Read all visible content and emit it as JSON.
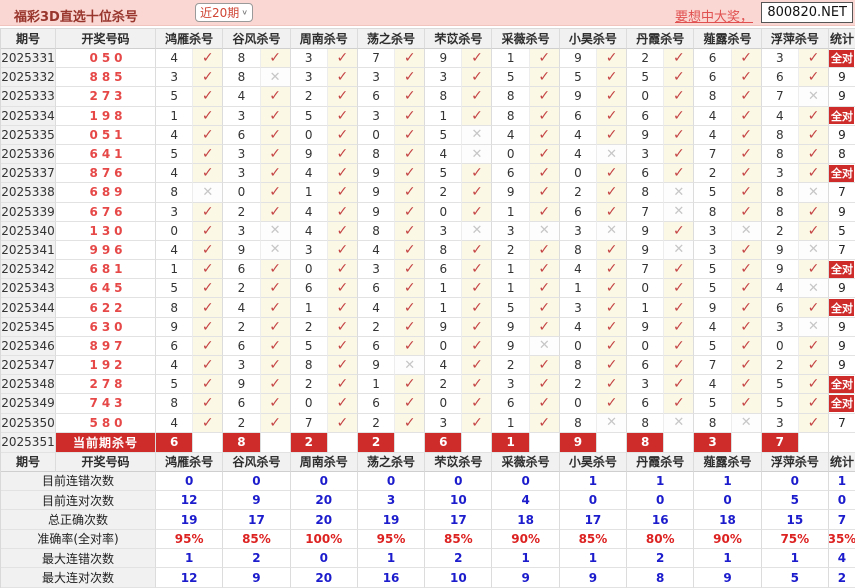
{
  "topbar": {
    "title": "福彩3D直选十位杀号",
    "range_selected": "近20期",
    "promo_link": "要想中大奖，",
    "site_badge": "800820.NET"
  },
  "icons": {
    "check_glyph": "✓",
    "cross_glyph": "✕",
    "dropdown_arrow": "∨"
  },
  "colors": {
    "topbar_pink": "#fad7d2",
    "accent_red": "#ce2b2b",
    "result_red": "#e64848",
    "correct_bg": "#fbf8e6",
    "check_red": "#c54545",
    "cross_gray": "#c6c6c6",
    "value_blue": "#1c1ccd",
    "percent_red": "#dd2222"
  },
  "table": {
    "headers": [
      "期号",
      "开奖号码",
      "鸿雁杀号",
      "谷风杀号",
      "周南杀号",
      "荡之杀号",
      "芣苡杀号",
      "采薇杀号",
      "小昊杀号",
      "丹霞杀号",
      "薤露杀号",
      "浮萍杀号",
      "统计"
    ],
    "full_hit_label": "全对",
    "rows": [
      {
        "period": "2025331",
        "result": "050",
        "kills": [
          4,
          8,
          3,
          7,
          9,
          1,
          9,
          2,
          6,
          3
        ],
        "marks": [
          1,
          1,
          1,
          1,
          1,
          1,
          1,
          1,
          1,
          1
        ],
        "stat": "全对"
      },
      {
        "period": "2025332",
        "result": "885",
        "kills": [
          3,
          8,
          3,
          3,
          3,
          5,
          5,
          5,
          6,
          6
        ],
        "marks": [
          1,
          0,
          1,
          1,
          1,
          1,
          1,
          1,
          1,
          1
        ],
        "stat": "9"
      },
      {
        "period": "2025333",
        "result": "273",
        "kills": [
          5,
          4,
          2,
          6,
          8,
          8,
          9,
          0,
          8,
          7
        ],
        "marks": [
          1,
          1,
          1,
          1,
          1,
          1,
          1,
          1,
          1,
          0
        ],
        "stat": "9"
      },
      {
        "period": "2025334",
        "result": "198",
        "kills": [
          1,
          3,
          5,
          3,
          1,
          8,
          6,
          6,
          4,
          4
        ],
        "marks": [
          1,
          1,
          1,
          1,
          1,
          1,
          1,
          1,
          1,
          1
        ],
        "stat": "全对"
      },
      {
        "period": "2025335",
        "result": "051",
        "kills": [
          4,
          6,
          0,
          0,
          5,
          4,
          4,
          9,
          4,
          8
        ],
        "marks": [
          1,
          1,
          1,
          1,
          0,
          1,
          1,
          1,
          1,
          1
        ],
        "stat": "9"
      },
      {
        "period": "2025336",
        "result": "641",
        "kills": [
          5,
          3,
          9,
          8,
          4,
          0,
          4,
          3,
          7,
          8
        ],
        "marks": [
          1,
          1,
          1,
          1,
          0,
          1,
          0,
          1,
          1,
          1
        ],
        "stat": "8"
      },
      {
        "period": "2025337",
        "result": "876",
        "kills": [
          4,
          3,
          4,
          9,
          5,
          6,
          0,
          6,
          2,
          3
        ],
        "marks": [
          1,
          1,
          1,
          1,
          1,
          1,
          1,
          1,
          1,
          1
        ],
        "stat": "全对"
      },
      {
        "period": "2025338",
        "result": "689",
        "kills": [
          8,
          0,
          1,
          9,
          2,
          9,
          2,
          8,
          5,
          8
        ],
        "marks": [
          0,
          1,
          1,
          1,
          1,
          1,
          1,
          0,
          1,
          0
        ],
        "stat": "7"
      },
      {
        "period": "2025339",
        "result": "676",
        "kills": [
          3,
          2,
          4,
          9,
          0,
          1,
          6,
          7,
          8,
          8
        ],
        "marks": [
          1,
          1,
          1,
          1,
          1,
          1,
          1,
          0,
          1,
          1
        ],
        "stat": "9"
      },
      {
        "period": "2025340",
        "result": "130",
        "kills": [
          0,
          3,
          4,
          8,
          3,
          3,
          3,
          9,
          3,
          2
        ],
        "marks": [
          1,
          0,
          1,
          1,
          0,
          0,
          0,
          1,
          0,
          1
        ],
        "stat": "5"
      },
      {
        "period": "2025341",
        "result": "996",
        "kills": [
          4,
          9,
          3,
          4,
          8,
          2,
          8,
          9,
          3,
          9
        ],
        "marks": [
          1,
          0,
          1,
          1,
          1,
          1,
          1,
          0,
          1,
          0
        ],
        "stat": "7"
      },
      {
        "period": "2025342",
        "result": "681",
        "kills": [
          1,
          6,
          0,
          3,
          6,
          1,
          4,
          7,
          5,
          9
        ],
        "marks": [
          1,
          1,
          1,
          1,
          1,
          1,
          1,
          1,
          1,
          1
        ],
        "stat": "全对"
      },
      {
        "period": "2025343",
        "result": "645",
        "kills": [
          5,
          2,
          6,
          6,
          1,
          1,
          1,
          0,
          5,
          4
        ],
        "marks": [
          1,
          1,
          1,
          1,
          1,
          1,
          1,
          1,
          1,
          0
        ],
        "stat": "9"
      },
      {
        "period": "2025344",
        "result": "622",
        "kills": [
          8,
          4,
          1,
          4,
          1,
          5,
          3,
          1,
          9,
          6
        ],
        "marks": [
          1,
          1,
          1,
          1,
          1,
          1,
          1,
          1,
          1,
          1
        ],
        "stat": "全对"
      },
      {
        "period": "2025345",
        "result": "630",
        "kills": [
          9,
          2,
          2,
          2,
          9,
          9,
          4,
          9,
          4,
          3
        ],
        "marks": [
          1,
          1,
          1,
          1,
          1,
          1,
          1,
          1,
          1,
          0
        ],
        "stat": "9"
      },
      {
        "period": "2025346",
        "result": "897",
        "kills": [
          6,
          6,
          5,
          6,
          0,
          9,
          0,
          0,
          5,
          0
        ],
        "marks": [
          1,
          1,
          1,
          1,
          1,
          0,
          1,
          1,
          1,
          1
        ],
        "stat": "9"
      },
      {
        "period": "2025347",
        "result": "192",
        "kills": [
          4,
          3,
          8,
          9,
          4,
          2,
          8,
          6,
          7,
          2
        ],
        "marks": [
          1,
          1,
          1,
          0,
          1,
          1,
          1,
          1,
          1,
          1
        ],
        "stat": "9"
      },
      {
        "period": "2025348",
        "result": "278",
        "kills": [
          5,
          9,
          2,
          1,
          2,
          3,
          2,
          3,
          4,
          5
        ],
        "marks": [
          1,
          1,
          1,
          1,
          1,
          1,
          1,
          1,
          1,
          1
        ],
        "stat": "全对"
      },
      {
        "period": "2025349",
        "result": "743",
        "kills": [
          8,
          6,
          0,
          6,
          0,
          6,
          0,
          6,
          5,
          5
        ],
        "marks": [
          1,
          1,
          1,
          1,
          1,
          1,
          1,
          1,
          1,
          1
        ],
        "stat": "全对"
      },
      {
        "period": "2025350",
        "result": "580",
        "kills": [
          4,
          2,
          7,
          2,
          3,
          1,
          8,
          8,
          8,
          3
        ],
        "marks": [
          1,
          1,
          1,
          1,
          1,
          1,
          0,
          0,
          0,
          1
        ],
        "stat": "7"
      }
    ],
    "current_row": {
      "period": "2025351",
      "label": "当前期杀号",
      "kills": [
        6,
        8,
        2,
        2,
        6,
        1,
        9,
        8,
        3,
        7
      ]
    },
    "summary_rows": [
      {
        "label": "目前连错次数",
        "style": "blue",
        "values": [
          "0",
          "0",
          "0",
          "0",
          "0",
          "0",
          "1",
          "1",
          "1",
          "0",
          "1"
        ]
      },
      {
        "label": "目前连对次数",
        "style": "blue",
        "values": [
          "12",
          "9",
          "20",
          "3",
          "10",
          "4",
          "0",
          "0",
          "0",
          "5",
          "0"
        ]
      },
      {
        "label": "总正确次数",
        "style": "blue",
        "values": [
          "19",
          "17",
          "20",
          "19",
          "17",
          "18",
          "17",
          "16",
          "18",
          "15",
          "7"
        ]
      },
      {
        "label": "准确率(全对率)",
        "style": "red",
        "values": [
          "95%",
          "85%",
          "100%",
          "95%",
          "85%",
          "90%",
          "85%",
          "80%",
          "90%",
          "75%",
          "35%"
        ]
      },
      {
        "label": "最大连错次数",
        "style": "blue",
        "values": [
          "1",
          "2",
          "0",
          "1",
          "2",
          "1",
          "1",
          "2",
          "1",
          "1",
          "4"
        ]
      },
      {
        "label": "最大连对次数",
        "style": "blue",
        "values": [
          "12",
          "9",
          "20",
          "16",
          "10",
          "9",
          "9",
          "8",
          "9",
          "5",
          "2"
        ]
      }
    ]
  }
}
